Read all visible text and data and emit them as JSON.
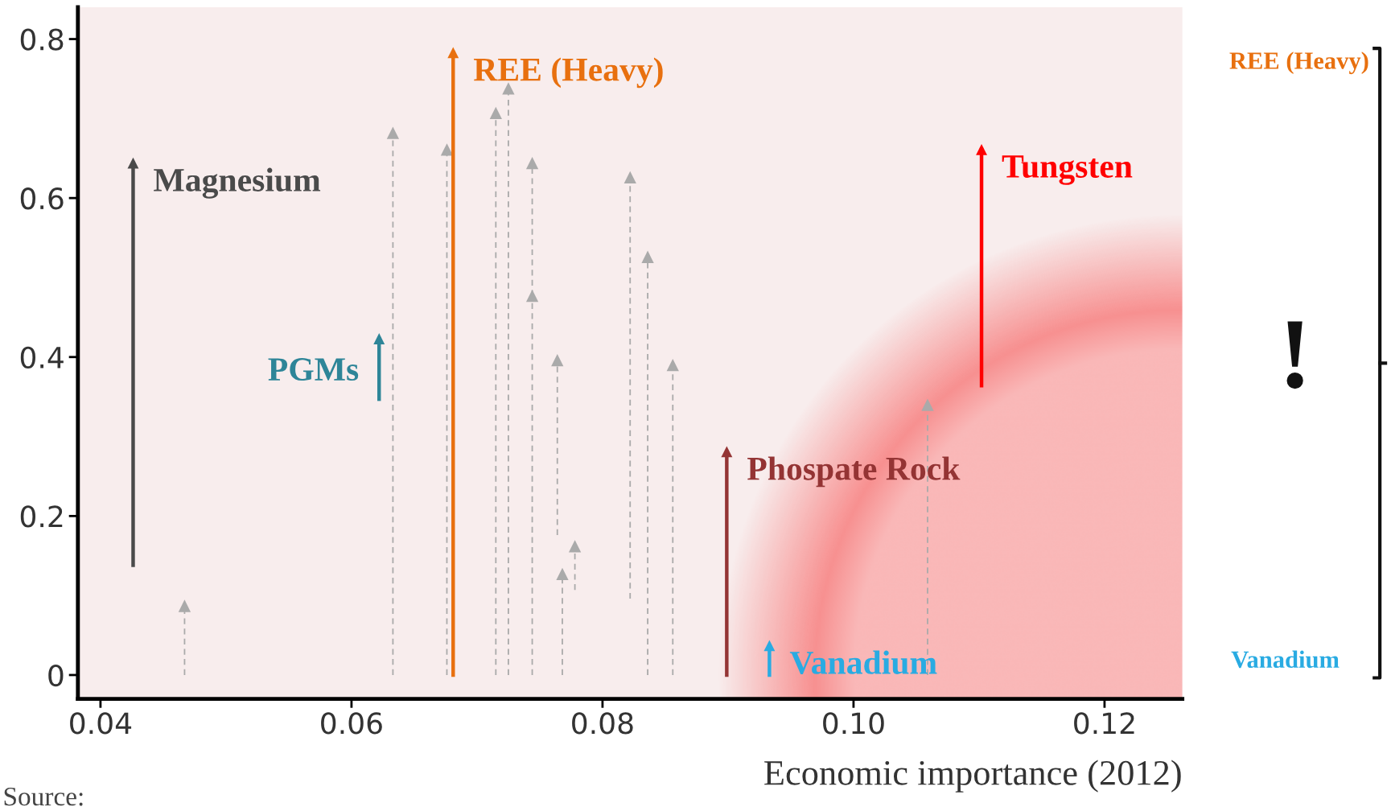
{
  "chart_data": {
    "type": "line",
    "xlabel": "Economic importance (2012)",
    "xlim": [
      0.0382,
      0.1262
    ],
    "ylim": [
      -0.03,
      0.84
    ],
    "xticks": [
      0.04,
      0.06,
      0.08,
      {
        "value": 0.1,
        "label": "0.10"
      },
      0.12
    ],
    "yticks": [
      0,
      0.2,
      0.4,
      0.6,
      0.8
    ],
    "grid": false,
    "marker": "triangle",
    "series": [
      {
        "name": "Magnesium",
        "color": "#4a4a4a",
        "x": [
          0.0426,
          0.0426
        ],
        "values": [
          0.138,
          0.644
        ]
      },
      {
        "color": "#aaaaaa",
        "line_style": "dashed",
        "x": [
          0.0467,
          0.0467
        ],
        "values": [
          0,
          0.087
        ]
      },
      {
        "color": "#aaaaaa",
        "line_style": "dashed",
        "x": [
          0.0633,
          0.0633
        ],
        "values": [
          0,
          0.682
        ]
      },
      {
        "name": "PGMs",
        "color": "#2e8598",
        "x": [
          0.0622,
          0.0622
        ],
        "values": [
          0.347,
          0.423
        ]
      },
      {
        "color": "#aaaaaa",
        "line_style": "dashed",
        "x": [
          0.0676,
          0.0676
        ],
        "values": [
          0,
          0.661
        ]
      },
      {
        "name": "REE (Heavy)",
        "color": "#e8700f",
        "x": [
          0.0681,
          0.0681
        ],
        "values": [
          0,
          0.783
        ]
      },
      {
        "color": "#aaaaaa",
        "line_style": "dashed",
        "x": [
          0.0715,
          0.0715
        ],
        "values": [
          0,
          0.707
        ]
      },
      {
        "color": "#aaaaaa",
        "line_style": "dashed",
        "x": [
          0.0725,
          0.0725
        ],
        "values": [
          0,
          0.738
        ]
      },
      {
        "color": "#aaaaaa",
        "line_style": "dashed",
        "x": [
          0.0744,
          0.0744
        ],
        "values": [
          0,
          0.477
        ]
      },
      {
        "color": "#aaaaaa",
        "line_style": "dashed",
        "x": [
          0.0744,
          0.0744
        ],
        "values": [
          0.477,
          0.644
        ]
      },
      {
        "color": "#aaaaaa",
        "line_style": "dashed",
        "x": [
          0.0764,
          0.0764
        ],
        "values": [
          0.176,
          0.396
        ]
      },
      {
        "color": "#aaaaaa",
        "line_style": "dashed",
        "x": [
          0.0768,
          0.0768
        ],
        "values": [
          0,
          0.127
        ]
      },
      {
        "color": "#aaaaaa",
        "line_style": "dashed",
        "x": [
          0.0778,
          0.0778
        ],
        "values": [
          0.107,
          0.162
        ]
      },
      {
        "color": "#aaaaaa",
        "line_style": "dashed",
        "x": [
          0.0822,
          0.0822
        ],
        "values": [
          0.096,
          0.626
        ]
      },
      {
        "color": "#aaaaaa",
        "line_style": "dashed",
        "x": [
          0.0836,
          0.0836
        ],
        "values": [
          0,
          0.526
        ]
      },
      {
        "color": "#aaaaaa",
        "line_style": "dashed",
        "x": [
          0.0856,
          0.0856
        ],
        "values": [
          0,
          0.39
        ]
      },
      {
        "name": "Phospate Rock",
        "color": "#943434",
        "x": [
          0.0899,
          0.0899
        ],
        "values": [
          0,
          0.281
        ]
      },
      {
        "name": "Vanadium",
        "color": "#29abe2",
        "x": [
          0.0933,
          0.0933
        ],
        "values": [
          0,
          0.037
        ]
      },
      {
        "color": "#aaaaaa",
        "line_style": "dashed",
        "x": [
          0.1059,
          0.1059
        ],
        "values": [
          0,
          0.34
        ]
      },
      {
        "name": "Tungsten",
        "color": "#ff0000",
        "x": [
          0.1102,
          0.1102
        ],
        "values": [
          0.364,
          0.661
        ]
      }
    ],
    "annotations": [
      "REE (Heavy)",
      "!",
      "Vanadium",
      "Source:"
    ]
  }
}
